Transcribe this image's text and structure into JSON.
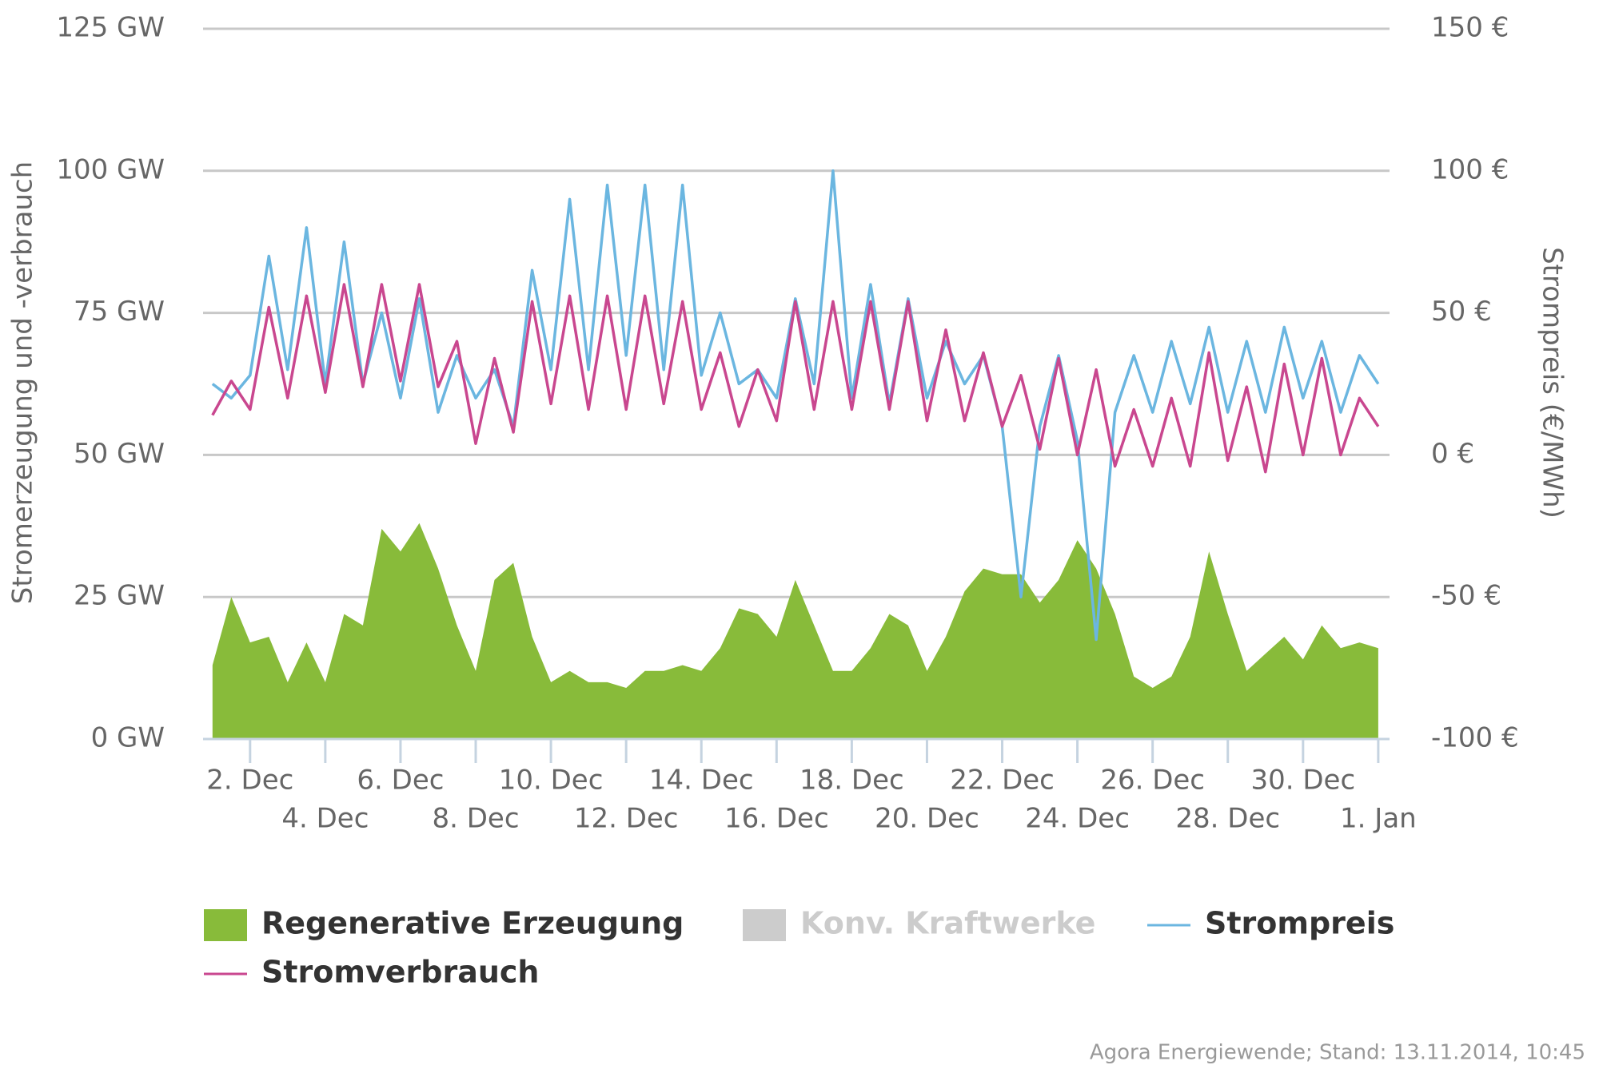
{
  "chart_data": {
    "type": "line",
    "y_title": "Stromerzeugung und -verbrauch",
    "y2_title": "Strompreis (€/MWh)",
    "source": "Agora Energiewende; Stand: 13.11.2014, 10:45",
    "grid": true,
    "xlim": [
      0.75,
      32.3
    ],
    "xticks": [
      {
        "value": 2,
        "label": "2. Dec"
      },
      {
        "value": 4,
        "label": "4. Dec"
      },
      {
        "value": 6,
        "label": "6. Dec"
      },
      {
        "value": 8,
        "label": "8. Dec"
      },
      {
        "value": 10,
        "label": "10. Dec"
      },
      {
        "value": 12,
        "label": "12. Dec"
      },
      {
        "value": 14,
        "label": "14. Dec"
      },
      {
        "value": 16,
        "label": "16. Dec"
      },
      {
        "value": 18,
        "label": "18. Dec"
      },
      {
        "value": 20,
        "label": "20. Dec"
      },
      {
        "value": 22,
        "label": "22. Dec"
      },
      {
        "value": 24,
        "label": "24. Dec"
      },
      {
        "value": 26,
        "label": "26. Dec"
      },
      {
        "value": 28,
        "label": "28. Dec"
      },
      {
        "value": 30,
        "label": "30. Dec"
      },
      {
        "value": 32,
        "label": "1. Jan"
      }
    ],
    "ylim": [
      0,
      125
    ],
    "yticks": [
      {
        "value": 0,
        "label": "0 GW"
      },
      {
        "value": 25,
        "label": "25 GW"
      },
      {
        "value": 50,
        "label": "50 GW"
      },
      {
        "value": 75,
        "label": "75 GW"
      },
      {
        "value": 100,
        "label": "100 GW"
      },
      {
        "value": 125,
        "label": "125 GW"
      }
    ],
    "y2lim": [
      -100,
      150
    ],
    "y2ticks": [
      {
        "value": -100,
        "label": "-100 €"
      },
      {
        "value": -50,
        "label": "-50 €"
      },
      {
        "value": 0,
        "label": "0 €"
      },
      {
        "value": 50,
        "label": "50 €"
      },
      {
        "value": 100,
        "label": "100 €"
      },
      {
        "value": 150,
        "label": "150 €"
      }
    ],
    "x": [
      1,
      1.5,
      2,
      2.5,
      3,
      3.5,
      4,
      4.5,
      5,
      5.5,
      6,
      6.5,
      7,
      7.5,
      8,
      8.5,
      9,
      9.5,
      10,
      10.5,
      11,
      11.5,
      12,
      12.5,
      13,
      13.5,
      14,
      14.5,
      15,
      15.5,
      16,
      16.5,
      17,
      17.5,
      18,
      18.5,
      19,
      19.5,
      20,
      20.5,
      21,
      21.5,
      22,
      22.5,
      23,
      23.5,
      24,
      24.5,
      25,
      25.5,
      26,
      26.5,
      27,
      27.5,
      28,
      28.5,
      29,
      29.5,
      30,
      30.5,
      31,
      31.5,
      32
    ],
    "series": [
      {
        "name": "Regenerative Erzeugung",
        "color": "#88bb3a",
        "kind": "area",
        "values": [
          13,
          25,
          17,
          18,
          10,
          17,
          10,
          22,
          20,
          37,
          33,
          38,
          30,
          20,
          12,
          28,
          31,
          18,
          10,
          12,
          10,
          10,
          9,
          12,
          12,
          13,
          12,
          16,
          23,
          22,
          18,
          28,
          20,
          12,
          12,
          16,
          22,
          20,
          12,
          18,
          26,
          30,
          29,
          29,
          24,
          28,
          35,
          30,
          22,
          11,
          9,
          11,
          18,
          33,
          22,
          12,
          15,
          18,
          14,
          20,
          16,
          17,
          16
        ]
      },
      {
        "name": "Konv. Kraftwerke",
        "color": "#cccccc",
        "kind": "area",
        "hidden": true
      },
      {
        "name": "Strompreis",
        "color": "#6bb6e0",
        "kind": "line",
        "axis": "y2",
        "values": [
          25,
          20,
          28,
          70,
          30,
          80,
          25,
          75,
          25,
          50,
          20,
          55,
          15,
          35,
          20,
          30,
          10,
          65,
          30,
          90,
          30,
          95,
          35,
          95,
          30,
          95,
          28,
          50,
          25,
          30,
          20,
          55,
          25,
          100,
          20,
          60,
          18,
          55,
          20,
          40,
          25,
          35,
          10,
          -50,
          10,
          35,
          5,
          -65,
          15,
          35,
          15,
          40,
          18,
          45,
          15,
          40,
          15,
          45,
          20,
          40,
          15,
          35,
          25
        ]
      },
      {
        "name": "Stromverbrauch",
        "color": "#c9478f",
        "kind": "line",
        "values": [
          57,
          63,
          58,
          76,
          60,
          78,
          61,
          80,
          62,
          80,
          63,
          80,
          62,
          70,
          52,
          67,
          54,
          77,
          59,
          78,
          58,
          78,
          58,
          78,
          59,
          77,
          58,
          68,
          55,
          65,
          56,
          77,
          58,
          77,
          58,
          77,
          58,
          77,
          56,
          72,
          56,
          68,
          55,
          64,
          51,
          67,
          50,
          65,
          48,
          58,
          48,
          60,
          48,
          68,
          49,
          62,
          47,
          66,
          50,
          67,
          50,
          60,
          55
        ]
      }
    ]
  }
}
